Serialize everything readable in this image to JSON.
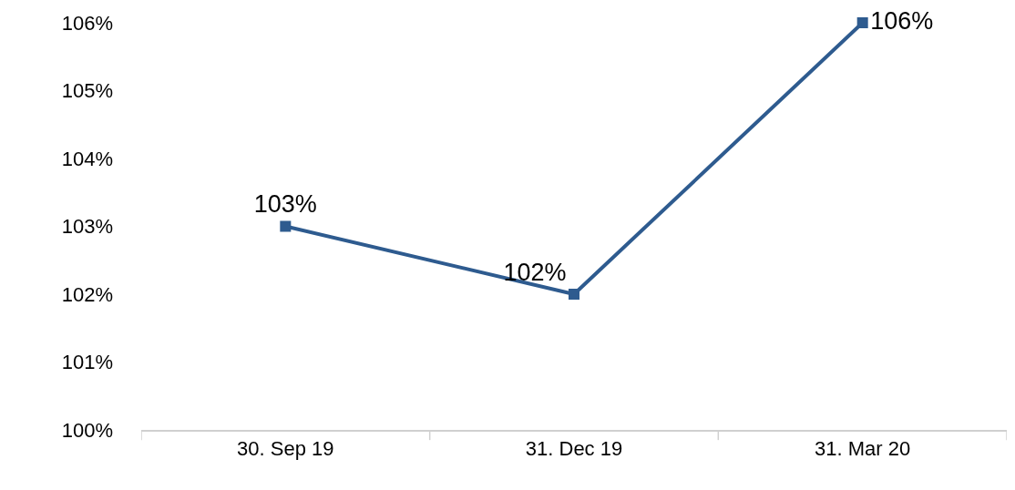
{
  "chart_data": {
    "type": "line",
    "categories": [
      "30. Sep 19",
      "31. Dec 19",
      "31. Mar 20"
    ],
    "series": [
      {
        "color": "#2e5b8f",
        "values": [
          103,
          102,
          106
        ],
        "value_labels": [
          "103%",
          "102%",
          "106%"
        ]
      }
    ],
    "ylim": [
      100,
      106
    ],
    "yticks": [
      {
        "value": 100,
        "label": "100%"
      },
      {
        "value": 101,
        "label": "101%"
      },
      {
        "value": 102,
        "label": "102%"
      },
      {
        "value": 103,
        "label": "103%"
      },
      {
        "value": 104,
        "label": "104%"
      },
      {
        "value": 105,
        "label": "105%"
      },
      {
        "value": 106,
        "label": "106%"
      }
    ],
    "grid": false,
    "marker": "square",
    "line_style": "solid"
  }
}
